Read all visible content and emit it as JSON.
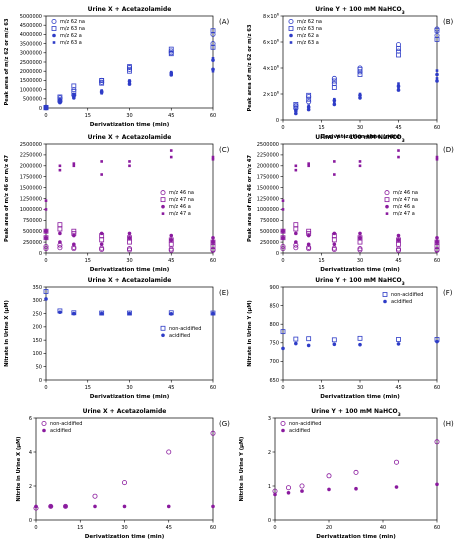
{
  "colors": {
    "blue": "#2e3cc7",
    "purple": "#8a1a9e",
    "axis": "#000000"
  },
  "chart_data": [
    {
      "type": "scatter",
      "panel": "(A)",
      "title": "Urine X + Acetazolamide",
      "xlabel": "Derivatization time (min)",
      "ylabel": "Peak area of m/z 62 or m/z 63",
      "xlim": [
        0,
        60
      ],
      "xticks": [
        "0",
        "15",
        "30",
        "45",
        "60"
      ],
      "ylim": [
        0,
        5000000
      ],
      "yticks": [
        "0",
        "500000",
        "1000000",
        "1500000",
        "2000000",
        "2500000",
        "3000000",
        "3500000",
        "4000000",
        "4500000",
        "5000000"
      ],
      "legend_position": "top-left",
      "series": [
        {
          "name": "m/z 62 na",
          "marker": "open-circle",
          "color": "blue",
          "x": [
            0,
            0,
            5,
            5,
            10,
            10,
            20,
            20,
            30,
            30,
            45,
            45,
            60,
            60
          ],
          "y": [
            20000,
            40000,
            350000,
            550000,
            700000,
            1000000,
            1500000,
            1400000,
            2100000,
            2200000,
            3000000,
            3100000,
            3500000,
            4000000
          ]
        },
        {
          "name": "m/z 63 na",
          "marker": "open-square",
          "color": "blue",
          "x": [
            0,
            0,
            5,
            5,
            10,
            10,
            20,
            20,
            30,
            30,
            45,
            45,
            60,
            60
          ],
          "y": [
            10000,
            30000,
            450000,
            600000,
            900000,
            1200000,
            1350000,
            1500000,
            2000000,
            2250000,
            2950000,
            3200000,
            3300000,
            4200000
          ]
        },
        {
          "name": "m/z 62 a",
          "marker": "filled-circle",
          "color": "blue",
          "x": [
            0,
            0,
            5,
            5,
            10,
            10,
            20,
            20,
            30,
            30,
            45,
            45,
            60,
            60
          ],
          "y": [
            10000,
            30000,
            300000,
            450000,
            550000,
            700000,
            850000,
            900000,
            1300000,
            1450000,
            1800000,
            1900000,
            2100000,
            2600000
          ]
        },
        {
          "name": "m/z 63 a",
          "marker": "filled-square",
          "color": "blue",
          "x": [
            0,
            0,
            5,
            5,
            10,
            10,
            20,
            20,
            30,
            30,
            45,
            45,
            60,
            60
          ],
          "y": [
            15000,
            25000,
            280000,
            350000,
            600000,
            650000,
            800000,
            950000,
            1350000,
            1500000,
            1850000,
            1950000,
            2000000,
            2700000
          ]
        }
      ]
    },
    {
      "type": "scatter",
      "panel": "(B)",
      "title": "Urine Y + 100 mM NaHCO3",
      "xlabel": "Derivatization time (min)",
      "ylabel": "Peak area of m/z 62 or m/z 63",
      "xlim": [
        0,
        60
      ],
      "xticks": [
        "0",
        "15",
        "30",
        "45",
        "60"
      ],
      "ylim": [
        0,
        8000000
      ],
      "yticks": [
        "0",
        "2×10^6",
        "4×10^6",
        "6×10^6",
        "8×10^6"
      ],
      "legend_position": "top-left",
      "series": [
        {
          "name": "m/z 62 na",
          "marker": "open-circle",
          "color": "blue",
          "x": [
            5,
            5,
            10,
            10,
            20,
            20,
            30,
            30,
            45,
            45,
            60,
            60
          ],
          "y": [
            900000,
            1100000,
            1400000,
            1800000,
            2800000,
            3200000,
            3700000,
            4000000,
            5300000,
            5800000,
            6500000,
            7000000
          ]
        },
        {
          "name": "m/z 63 na",
          "marker": "open-square",
          "color": "blue",
          "x": [
            5,
            5,
            10,
            10,
            20,
            20,
            30,
            30,
            45,
            45,
            60,
            60
          ],
          "y": [
            1000000,
            1200000,
            1600000,
            1900000,
            2500000,
            3000000,
            3500000,
            3900000,
            5000000,
            5500000,
            6200000,
            6900000
          ]
        },
        {
          "name": "m/z 62 a",
          "marker": "filled-circle",
          "color": "blue",
          "x": [
            5,
            5,
            10,
            10,
            20,
            20,
            30,
            30,
            45,
            45,
            60,
            60
          ],
          "y": [
            500000,
            700000,
            800000,
            1000000,
            1200000,
            1500000,
            1700000,
            1900000,
            2300000,
            2600000,
            3000000,
            3500000
          ]
        },
        {
          "name": "m/z 63 a",
          "marker": "filled-square",
          "color": "blue",
          "x": [
            5,
            5,
            10,
            10,
            20,
            20,
            30,
            30,
            45,
            45,
            60,
            60
          ],
          "y": [
            600000,
            800000,
            900000,
            1100000,
            1300000,
            1600000,
            1800000,
            2000000,
            2400000,
            2800000,
            3200000,
            3800000
          ]
        }
      ]
    },
    {
      "type": "scatter",
      "panel": "(C)",
      "title": "Urine X + Acetazolamide",
      "xlabel": "Derivatization time (min)",
      "ylabel": "Peak area of m/z 46 or m/z 47",
      "xlim": [
        0,
        60
      ],
      "xticks": [
        "0",
        "15",
        "30",
        "45",
        "60"
      ],
      "ylim": [
        0,
        2500000
      ],
      "yticks": [
        "0",
        "250000",
        "500000",
        "750000",
        "1000000",
        "1250000",
        "1500000",
        "1750000",
        "2000000",
        "2250000",
        "2500000"
      ],
      "legend_position": "center-right",
      "series": [
        {
          "name": "m/z 46 na",
          "marker": "open-circle",
          "color": "purple",
          "x": [
            0,
            0,
            5,
            5,
            10,
            10,
            20,
            20,
            30,
            30,
            45,
            45,
            60,
            60
          ],
          "y": [
            100000,
            150000,
            120000,
            180000,
            100000,
            130000,
            80000,
            110000,
            70000,
            100000,
            60000,
            90000,
            60000,
            80000
          ]
        },
        {
          "name": "m/z 47 na",
          "marker": "open-square",
          "color": "purple",
          "x": [
            0,
            0,
            5,
            5,
            10,
            10,
            20,
            20,
            30,
            30,
            45,
            45,
            60,
            60
          ],
          "y": [
            500000,
            350000,
            650000,
            550000,
            450000,
            500000,
            300000,
            400000,
            250000,
            350000,
            200000,
            300000,
            150000,
            250000
          ]
        },
        {
          "name": "m/z 46 a",
          "marker": "filled-circle",
          "color": "purple",
          "x": [
            0,
            0,
            5,
            5,
            10,
            10,
            20,
            20,
            30,
            30,
            45,
            45,
            60,
            60
          ],
          "y": [
            350000,
            500000,
            250000,
            450000,
            200000,
            400000,
            200000,
            450000,
            350000,
            450000,
            300000,
            400000,
            250000,
            350000
          ]
        },
        {
          "name": "m/z 47 a",
          "marker": "filled-square",
          "color": "purple",
          "x": [
            0,
            0,
            5,
            5,
            10,
            10,
            20,
            20,
            30,
            30,
            45,
            45,
            60,
            60
          ],
          "y": [
            1000000,
            1200000,
            2000000,
            1900000,
            2050000,
            2000000,
            2100000,
            1800000,
            2100000,
            2000000,
            2350000,
            2200000,
            2200000,
            2150000
          ]
        }
      ]
    },
    {
      "type": "scatter",
      "panel": "(D)",
      "title": "Urine Y + 100 mM NaHCO3",
      "xlabel": "Derivatization time (min)",
      "ylabel": "Peak area of m/z 46 or m/z 47",
      "xlim": [
        0,
        60
      ],
      "xticks": [
        "0",
        "15",
        "30",
        "45",
        "60"
      ],
      "ylim": [
        0,
        2500000
      ],
      "yticks": [
        "0",
        "250000",
        "500000",
        "750000",
        "1000000",
        "1250000",
        "1500000",
        "1750000",
        "2000000",
        "2250000",
        "2500000"
      ],
      "legend_position": "center-right",
      "series": [
        {
          "name": "m/z 46 na",
          "marker": "open-circle",
          "color": "purple",
          "x": [
            0,
            0,
            5,
            5,
            10,
            10,
            20,
            20,
            30,
            30,
            45,
            45,
            60,
            60
          ],
          "y": [
            100000,
            150000,
            120000,
            180000,
            100000,
            130000,
            80000,
            110000,
            70000,
            100000,
            60000,
            90000,
            60000,
            80000
          ]
        },
        {
          "name": "m/z 47 na",
          "marker": "open-square",
          "color": "purple",
          "x": [
            0,
            0,
            5,
            5,
            10,
            10,
            20,
            20,
            30,
            30,
            45,
            45,
            60,
            60
          ],
          "y": [
            500000,
            350000,
            650000,
            550000,
            450000,
            500000,
            300000,
            400000,
            250000,
            350000,
            200000,
            300000,
            150000,
            250000
          ]
        },
        {
          "name": "m/z 46 a",
          "marker": "filled-circle",
          "color": "purple",
          "x": [
            0,
            0,
            5,
            5,
            10,
            10,
            20,
            20,
            30,
            30,
            45,
            45,
            60,
            60
          ],
          "y": [
            350000,
            500000,
            250000,
            450000,
            200000,
            400000,
            200000,
            450000,
            350000,
            450000,
            300000,
            400000,
            250000,
            350000
          ]
        },
        {
          "name": "m/z 47 a",
          "marker": "filled-square",
          "color": "purple",
          "x": [
            0,
            0,
            5,
            5,
            10,
            10,
            20,
            20,
            30,
            30,
            45,
            45,
            60,
            60
          ],
          "y": [
            1000000,
            1200000,
            2000000,
            1900000,
            2050000,
            2000000,
            2100000,
            1800000,
            2100000,
            2000000,
            2350000,
            2200000,
            2200000,
            2150000
          ]
        }
      ]
    },
    {
      "type": "scatter",
      "panel": "(E)",
      "title": "Urine X + Acetazolamide",
      "xlabel": "Derivatization time (min)",
      "ylabel": "Nitrate in Urine X (µM)",
      "xlim": [
        0,
        60
      ],
      "xticks": [
        "0",
        "15",
        "30",
        "45",
        "60"
      ],
      "ylim": [
        0,
        350
      ],
      "yticks": [
        "0",
        "50",
        "100",
        "150",
        "200",
        "250",
        "300",
        "350"
      ],
      "legend_position": "center-right",
      "series": [
        {
          "name": "non-acidified",
          "marker": "open-square",
          "color": "blue",
          "x": [
            0,
            5,
            10,
            20,
            30,
            45,
            60
          ],
          "y": [
            333,
            260,
            253,
            252,
            252,
            253,
            252
          ]
        },
        {
          "name": "acidified",
          "marker": "filled-circle",
          "color": "blue",
          "x": [
            0,
            5,
            10,
            20,
            30,
            45,
            60
          ],
          "y": [
            305,
            255,
            250,
            250,
            250,
            249,
            250
          ]
        }
      ]
    },
    {
      "type": "scatter",
      "panel": "(F)",
      "title": "Urine Y + 100 mM NaHCO3",
      "xlabel": "Derivatization time (min)",
      "ylabel": "Nitrate in Urine Y (µM)",
      "xlim": [
        0,
        60
      ],
      "xticks": [
        "0",
        "15",
        "30",
        "45",
        "60"
      ],
      "ylim": [
        650,
        900
      ],
      "yticks": [
        "650",
        "700",
        "750",
        "800",
        "850",
        "900"
      ],
      "legend_position": "top-right",
      "series": [
        {
          "name": "non-acidified",
          "marker": "open-square",
          "color": "blue",
          "x": [
            0,
            5,
            10,
            20,
            30,
            45,
            60
          ],
          "y": [
            780,
            760,
            761,
            758,
            762,
            759,
            759
          ]
        },
        {
          "name": "acidified",
          "marker": "filled-circle",
          "color": "blue",
          "x": [
            0,
            5,
            10,
            20,
            30,
            45,
            60
          ],
          "y": [
            735,
            748,
            743,
            746,
            745,
            747,
            753
          ]
        }
      ]
    },
    {
      "type": "scatter",
      "panel": "(G)",
      "title": "Urine X + Acetazolamide",
      "xlabel": "Derivatization time (min)",
      "ylabel": "Nitrite in Urine X (µM)",
      "xlim": [
        0,
        60
      ],
      "xticks": [
        "0",
        "15",
        "30",
        "45",
        "60"
      ],
      "ylim": [
        0,
        6
      ],
      "yticks": [
        "0",
        "2",
        "4",
        "6"
      ],
      "legend_position": "top-left",
      "series": [
        {
          "name": "non-acidified",
          "marker": "open-circle",
          "color": "purple",
          "x": [
            0,
            5,
            10,
            20,
            30,
            45,
            60
          ],
          "y": [
            0.7,
            0.8,
            0.8,
            1.4,
            2.2,
            4.0,
            5.1
          ]
        },
        {
          "name": "acidified",
          "marker": "filled-circle",
          "color": "purple",
          "x": [
            0,
            5,
            10,
            20,
            30,
            45,
            60
          ],
          "y": [
            0.8,
            0.8,
            0.8,
            0.8,
            0.8,
            0.8,
            0.8
          ]
        }
      ]
    },
    {
      "type": "scatter",
      "panel": "(H)",
      "title": "Urine Y + 100 mM NaHCO3",
      "xlabel": "Derivatization time (min)",
      "ylabel": "Nitrite in Urine Y (µM)",
      "xlim": [
        0,
        60
      ],
      "xticks": [
        "0",
        "20",
        "40",
        "60"
      ],
      "ylim": [
        0,
        3
      ],
      "yticks": [
        "0",
        "1",
        "2",
        "3"
      ],
      "legend_position": "top-left",
      "series": [
        {
          "name": "non-acidified",
          "marker": "open-circle",
          "color": "purple",
          "x": [
            0,
            5,
            10,
            20,
            30,
            45,
            60
          ],
          "y": [
            0.85,
            0.95,
            1.0,
            1.3,
            1.4,
            1.7,
            2.3
          ]
        },
        {
          "name": "acidified",
          "marker": "filled-circle",
          "color": "purple",
          "x": [
            0,
            5,
            10,
            20,
            30,
            45,
            60
          ],
          "y": [
            0.75,
            0.8,
            0.85,
            0.9,
            0.92,
            0.97,
            1.05
          ]
        }
      ]
    }
  ]
}
